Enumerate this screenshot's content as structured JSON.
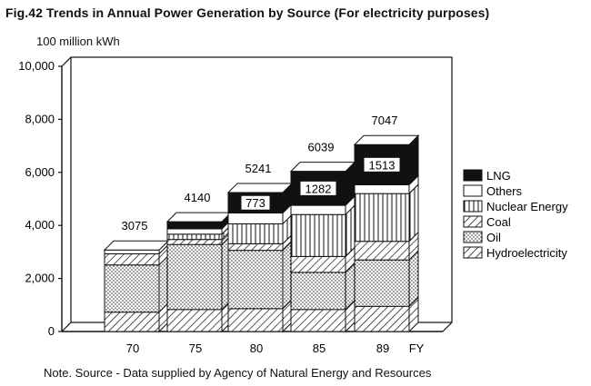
{
  "figure": {
    "title": "Fig.42  Trends in Annual Power Generation by Source (For electricity purposes)",
    "unit": "100 million kWh",
    "note": "Note. Source - Data supplied by Agency of Natural Energy and Resources"
  },
  "chart_data": {
    "type": "bar",
    "stacked": true,
    "style": "3d",
    "categories": [
      "70",
      "75",
      "80",
      "85",
      "89"
    ],
    "xlabel": "FY",
    "ylabel": "100 million kWh",
    "ylim": [
      0,
      10000
    ],
    "yticks": [
      0,
      2000,
      4000,
      6000,
      8000,
      10000
    ],
    "ytick_labels": [
      "0",
      "2,000",
      "4,000",
      "6,000",
      "8,000",
      "10,000"
    ],
    "grid": false,
    "legend_position": "right",
    "series": [
      {
        "name": "Hydroelectricity",
        "pattern": "diagonal-hatch",
        "values": [
          730,
          830,
          860,
          830,
          950
        ]
      },
      {
        "name": "Oil",
        "pattern": "dots",
        "values": [
          1780,
          2450,
          2200,
          1400,
          1750
        ]
      },
      {
        "name": "Coal",
        "pattern": "diagonal-hatch",
        "values": [
          420,
          190,
          250,
          600,
          700
        ]
      },
      {
        "name": "Nuclear Energy",
        "pattern": "vertical-lines",
        "values": [
          0,
          200,
          750,
          1580,
          1800
        ]
      },
      {
        "name": "Others",
        "pattern": "white",
        "values": [
          145,
          200,
          408,
          347,
          334
        ]
      },
      {
        "name": "LNG",
        "pattern": "solid-black",
        "values": [
          0,
          270,
          773,
          1282,
          1513
        ]
      }
    ],
    "totals": [
      3075,
      4140,
      5241,
      6039,
      7047
    ],
    "annotations": {
      "totals": [
        "3075",
        "4140",
        "5241",
        "6039",
        "7047"
      ],
      "lng_labels": [
        "",
        "",
        "773",
        "1282",
        "1513"
      ]
    }
  }
}
